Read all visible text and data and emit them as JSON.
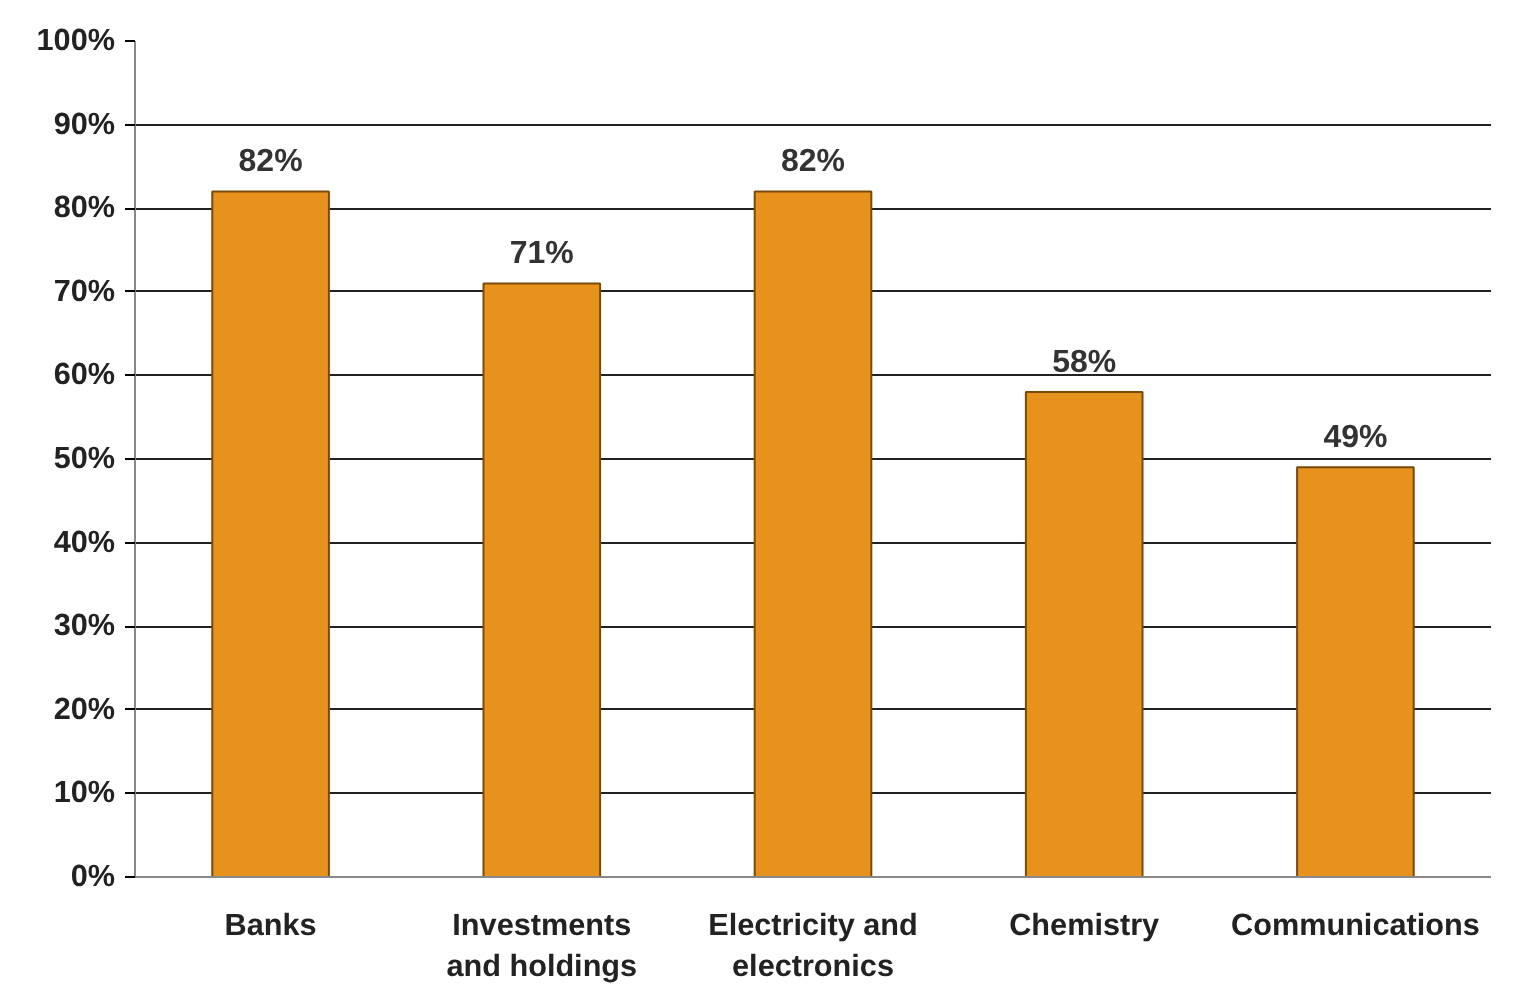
{
  "chart_data": {
    "type": "bar",
    "categories": [
      "Banks",
      "Investments\nand holdings",
      "Electricity and\nelectronics",
      "Chemistry",
      "Communications"
    ],
    "values": [
      82,
      71,
      82,
      58,
      49
    ],
    "color": "#e8921e",
    "ylim": [
      0,
      100
    ],
    "yticks": [
      {
        "value": 0,
        "label": "0%"
      },
      {
        "value": 10,
        "label": "10%"
      },
      {
        "value": 20,
        "label": "20%"
      },
      {
        "value": 30,
        "label": "30%"
      },
      {
        "value": 40,
        "label": "40%"
      },
      {
        "value": 50,
        "label": "50%"
      },
      {
        "value": 60,
        "label": "60%"
      },
      {
        "value": 70,
        "label": "70%"
      },
      {
        "value": 80,
        "label": "80%"
      },
      {
        "value": 90,
        "label": "90%"
      },
      {
        "value": 100,
        "label": "100%"
      }
    ],
    "value_labels": [
      "82%",
      "71%",
      "82%",
      "58%",
      "49%"
    ],
    "grid": "y"
  }
}
